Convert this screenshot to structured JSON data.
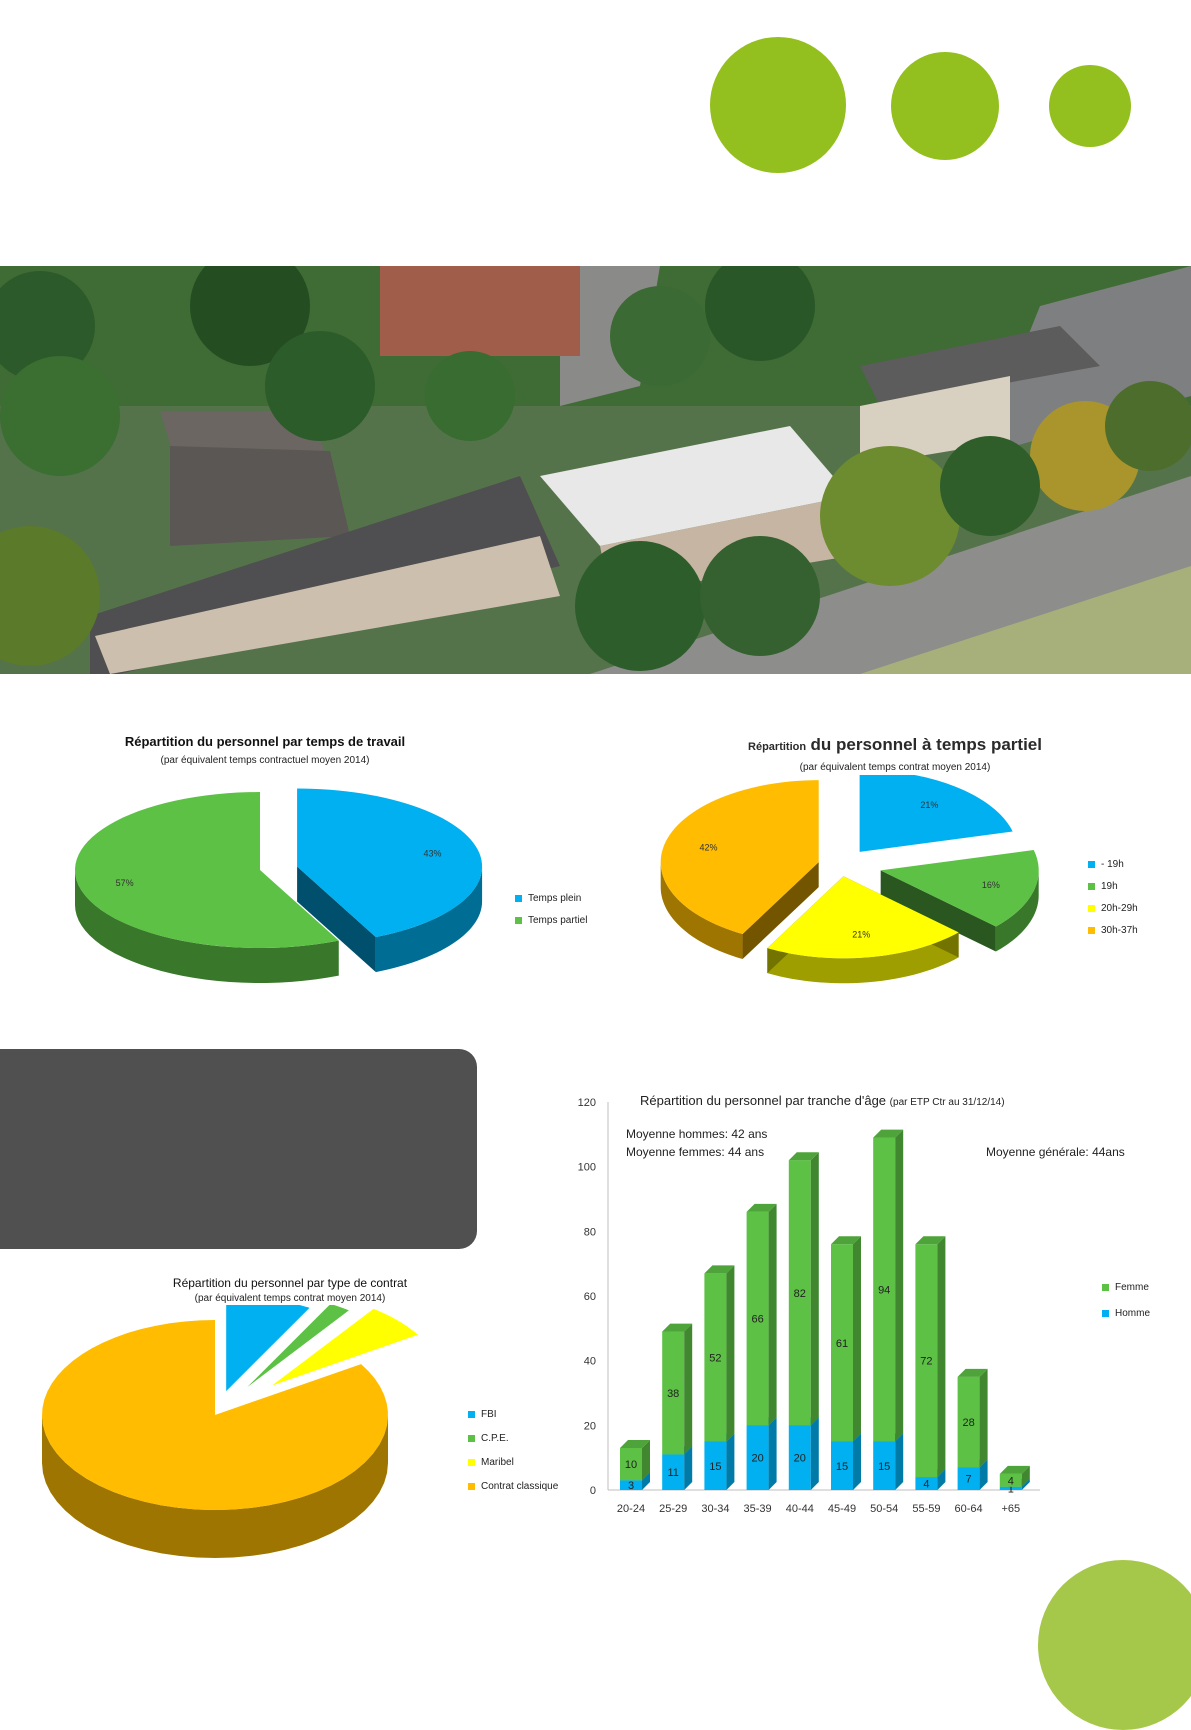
{
  "colors": {
    "accent_green": "#93bf1f",
    "blue": "#00b0f0",
    "green": "#5cc144",
    "yellow": "#ffff00",
    "orange": "#ffbc00",
    "dark_box": "#505050"
  },
  "chart_data": [
    {
      "type": "pie",
      "title": "Répartition du personnel par temps de travail",
      "subtitle": "(par équivalent temps contractuel moyen 2014)",
      "slices": [
        {
          "label": "Temps plein",
          "value": 43,
          "display": "43%",
          "color": "#00b0f0"
        },
        {
          "label": "Temps partiel",
          "value": 57,
          "display": "57%",
          "color": "#5cc144"
        }
      ],
      "legend_position": "right"
    },
    {
      "type": "pie",
      "title_small": "Répartition",
      "title_big": "du personnel à temps partiel",
      "subtitle": "(par équivalent temps contrat moyen 2014)",
      "slices": [
        {
          "label": "- 19h",
          "value": 21,
          "display": "21%",
          "color": "#00b0f0"
        },
        {
          "label": "19h",
          "value": 16,
          "display": "16%",
          "color": "#5cc144"
        },
        {
          "label": "20h-29h",
          "value": 21,
          "display": "21%",
          "color": "#ffff00"
        },
        {
          "label": "30h-37h",
          "value": 42,
          "display": "42%",
          "color": "#ffbc00"
        }
      ],
      "legend_position": "right"
    },
    {
      "type": "pie",
      "title": "Répartition du personnel par type de contrat",
      "subtitle": "(par équivalent temps contrat moyen 2014)",
      "slices": [
        {
          "label": "FBI",
          "value": 8,
          "color": "#00b0f0"
        },
        {
          "label": "C.P.E.",
          "value": 2,
          "color": "#5cc144"
        },
        {
          "label": "Maribel",
          "value": 6,
          "color": "#ffff00"
        },
        {
          "label": "Contrat classique",
          "value": 84,
          "color": "#ffbc00"
        }
      ],
      "legend_position": "right"
    },
    {
      "type": "bar",
      "stacked": true,
      "title": "Répartition du personnel par tranche d'âge",
      "title_note": "(par ETP Ctr au 31/12/14)",
      "categories": [
        "20-24",
        "25-29",
        "30-34",
        "35-39",
        "40-44",
        "45-49",
        "50-54",
        "55-59",
        "60-64",
        "+65"
      ],
      "series": [
        {
          "name": "Homme",
          "values": [
            3,
            11,
            15,
            20,
            20,
            15,
            15,
            4,
            7,
            1
          ],
          "color": "#00b0f0"
        },
        {
          "name": "Femme",
          "values": [
            10,
            38,
            52,
            66,
            82,
            61,
            94,
            72,
            28,
            4
          ],
          "color": "#5cc144"
        }
      ],
      "ylim": [
        0,
        120
      ],
      "yticks": [
        0,
        20,
        40,
        60,
        80,
        100,
        120
      ],
      "annotations": [
        "Moyenne hommes: 42 ans",
        "Moyenne femmes: 44 ans",
        "Moyenne générale: 44ans"
      ],
      "legend": [
        "Femme",
        "Homme"
      ],
      "legend_position": "right"
    }
  ]
}
